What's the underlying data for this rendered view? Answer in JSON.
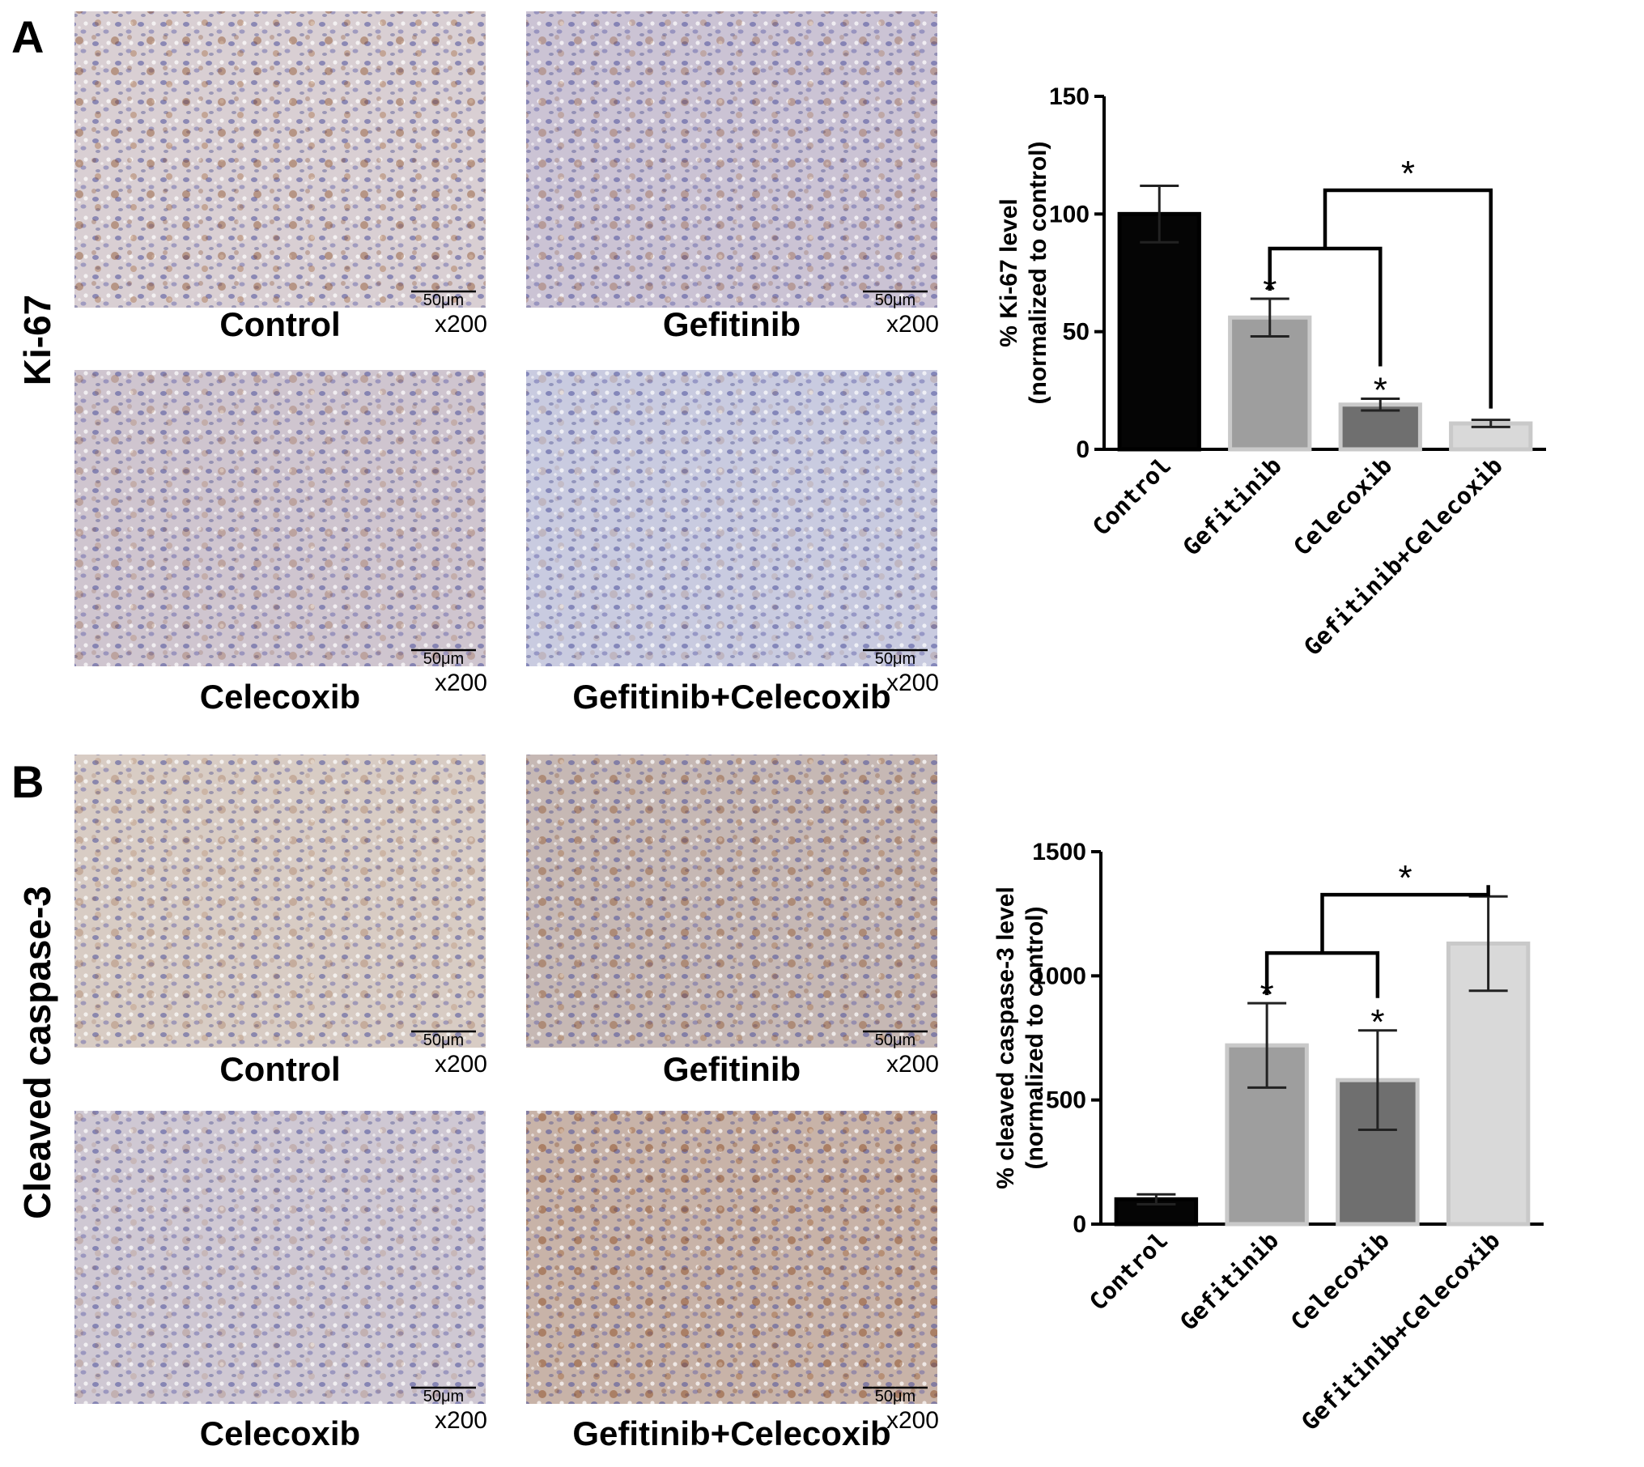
{
  "panels": [
    {
      "letter": "A",
      "row_label": "Ki-67",
      "images": [
        {
          "label": "Control",
          "scalebar": "50μm",
          "magnification": "x200",
          "tone": "ki67-control"
        },
        {
          "label": "Gefitinib",
          "scalebar": "50μm",
          "magnification": "x200",
          "tone": "ki67-gefitinib"
        },
        {
          "label": "Celecoxib",
          "scalebar": "50μm",
          "magnification": "x200",
          "tone": "ki67-celecoxib"
        },
        {
          "label": "Gefitinib+Celecoxib",
          "scalebar": "50μm",
          "magnification": "x200",
          "tone": "ki67-combo"
        }
      ]
    },
    {
      "letter": "B",
      "row_label": "Cleaved caspase-3",
      "images": [
        {
          "label": "Control",
          "scalebar": "50μm",
          "magnification": "x200",
          "tone": "casp-control"
        },
        {
          "label": "Gefitinib",
          "scalebar": "50μm",
          "magnification": "x200",
          "tone": "casp-gefitinib"
        },
        {
          "label": "Celecoxib",
          "scalebar": "50μm",
          "magnification": "x200",
          "tone": "casp-celecoxib"
        },
        {
          "label": "Gefitinib+Celecoxib",
          "scalebar": "50μm",
          "magnification": "x200",
          "tone": "casp-combo"
        }
      ]
    }
  ],
  "chart_data": [
    {
      "type": "bar",
      "panel": "A",
      "categories": [
        "Control",
        "Gefitinib",
        "Celecoxib",
        "Gefitinib+Celecoxib"
      ],
      "values": [
        100,
        56,
        19,
        11
      ],
      "errors": [
        12,
        8,
        2.5,
        1.5
      ],
      "significance_marks": [
        "",
        "*",
        "*",
        ""
      ],
      "brackets": [
        {
          "from": 1,
          "to": 2,
          "label": ""
        },
        {
          "from": "bracket0",
          "to": 3,
          "label": "*"
        }
      ],
      "colors": [
        "#050505",
        "#9e9e9e",
        "#6f6f6f",
        "#d9d9d9"
      ],
      "ylabel_line1": "% Ki-67 level",
      "ylabel_line2": "(normalized to control)",
      "ylim": [
        0,
        150
      ],
      "yticks": [
        0,
        50,
        100,
        150
      ]
    },
    {
      "type": "bar",
      "panel": "B",
      "categories": [
        "Control",
        "Gefitinib",
        "Celecoxib",
        "Gefitinib+Celecoxib"
      ],
      "values": [
        100,
        720,
        580,
        1130
      ],
      "errors": [
        20,
        170,
        200,
        190
      ],
      "significance_marks": [
        "",
        "*",
        "*",
        ""
      ],
      "brackets": [
        {
          "from": 1,
          "to": 2,
          "label": ""
        },
        {
          "from": "bracket0",
          "to": 3,
          "label": "*"
        }
      ],
      "colors": [
        "#050505",
        "#9e9e9e",
        "#6f6f6f",
        "#d9d9d9"
      ],
      "ylabel_line1": "% cleaved caspase-3 level",
      "ylabel_line2": "(normalized to control)",
      "ylim": [
        0,
        1500
      ],
      "yticks": [
        0,
        500,
        1000,
        1500
      ]
    }
  ]
}
